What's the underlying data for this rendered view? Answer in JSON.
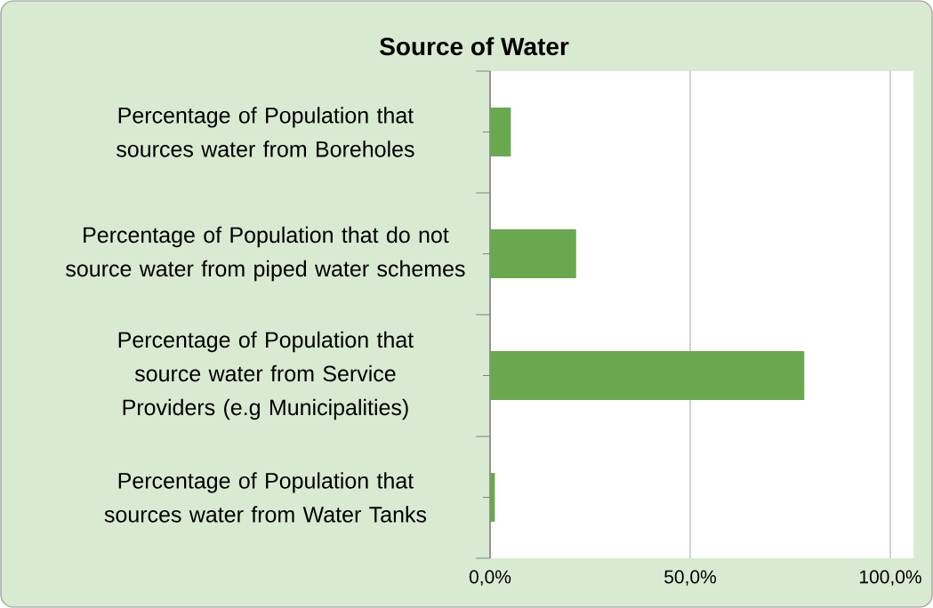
{
  "chart_data": {
    "type": "bar",
    "orientation": "horizontal",
    "title": "Source of Water",
    "categories": [
      "Percentage of Population that sources water from Boreholes",
      "Percentage of Population that do not source water from piped water schemes",
      "Percentage of Population that source water from Service Providers (e.g Municipalities)",
      "Percentage of Population that sources water from Water Tanks"
    ],
    "values": [
      5.2,
      21.5,
      78.5,
      1.2
    ],
    "color": "#6aa84f",
    "xlim": [
      0,
      100
    ],
    "xticks": [
      {
        "value": 0,
        "label": "0,0%"
      },
      {
        "value": 50,
        "label": "50,0%"
      },
      {
        "value": 100,
        "label": "100,0%"
      }
    ],
    "grid": "x"
  }
}
